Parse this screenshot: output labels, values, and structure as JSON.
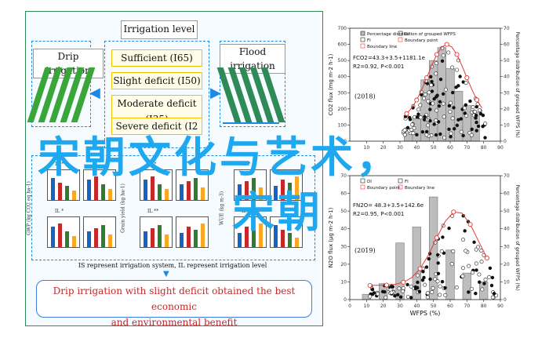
{
  "left_diagram": {
    "irrigation_level": "Irrigation level",
    "drip_irrigation": "Drip irrigation",
    "flood_irrigation": "Flood irrigation",
    "levels": [
      "Sufficient (I65)",
      "Slight deficit (I50)",
      "Moderate deficit (I35)",
      "Severe deficit (I2"
    ],
    "ylabels": [
      "GWP (kg CO2 eq ha-1)",
      "Grain yield (kg ha-1)",
      "WUE (kg m-3)"
    ],
    "legend_text": "IS represent irrigation system, IL represent irrigation level",
    "conclusion_line1": "Drip irrigation with slight deficit obtained the best economic",
    "conclusion_line2": "and environmental benefit",
    "panel_tags": [
      "IS **",
      "IL *",
      "IS *",
      "IL **",
      "IS *",
      "IL **"
    ],
    "x_labels": [
      "DI",
      "FI"
    ]
  },
  "overlay": {
    "title": "宋朝文化与艺术",
    "comma": "，",
    "subtitle": "宋朝"
  },
  "chart_data": [
    {
      "type": "scatter",
      "title": "(2018)",
      "ylabel": "CO2 flux (mg m-2 h-1)",
      "y2label": "Percentage distribution of grouped WFPS (%)",
      "legend": [
        "Percentage distribution of grouped WFPS",
        "DI",
        "FI",
        "Boundary point",
        "Boundary line"
      ],
      "annotations": [
        "FCO2=43.3+3.5+1181.1e",
        "R2=0.92, P<0.001"
      ],
      "xlim": [
        0,
        90
      ],
      "ylim": [
        0,
        700
      ],
      "y2lim": [
        0,
        70
      ],
      "x_ticks": [
        "10",
        "20",
        "30",
        "40",
        "50",
        "60",
        "70",
        "80",
        "90"
      ],
      "y_ticks": [
        "0",
        "100",
        "200",
        "300",
        "400",
        "500",
        "600",
        "700"
      ],
      "y2_ticks": [
        "0",
        "10",
        "20",
        "30",
        "40",
        "50",
        "60",
        "70"
      ],
      "histogram": {
        "bins": [
          35,
          40,
          45,
          50,
          55,
          60,
          65,
          70,
          75
        ],
        "values": [
          5,
          15,
          38,
          50,
          58,
          45,
          31,
          22,
          18
        ]
      }
    },
    {
      "type": "scatter",
      "title": "(2019)",
      "xlabel": "WFPS (%)",
      "ylabel": "N2O flux (μg m-2 h-1)",
      "y2label": "Percentage distribution of grouped WFPS (%)",
      "legend": [
        "DI",
        "FI",
        "Boundary point",
        "Boundary line"
      ],
      "annotations": [
        "FN2O= 48.3+3.5+142.6e",
        "R2=0.95, P<0.001"
      ],
      "xlim": [
        0,
        90
      ],
      "ylim": [
        0,
        70
      ],
      "y2lim": [
        0,
        70
      ],
      "x_ticks": [
        "0",
        "10",
        "20",
        "30",
        "40",
        "50",
        "60",
        "70",
        "80",
        "90"
      ],
      "y_ticks": [
        "0",
        "10",
        "20",
        "30",
        "40",
        "50",
        "60",
        "70"
      ],
      "y2_ticks": [
        "0",
        "10",
        "20",
        "30",
        "40",
        "50",
        "60",
        "70"
      ],
      "histogram": {
        "bins": [
          10,
          20,
          30,
          40,
          50,
          60,
          70,
          80
        ],
        "values": [
          3,
          9,
          32,
          41,
          58,
          28,
          15,
          10
        ]
      }
    }
  ]
}
